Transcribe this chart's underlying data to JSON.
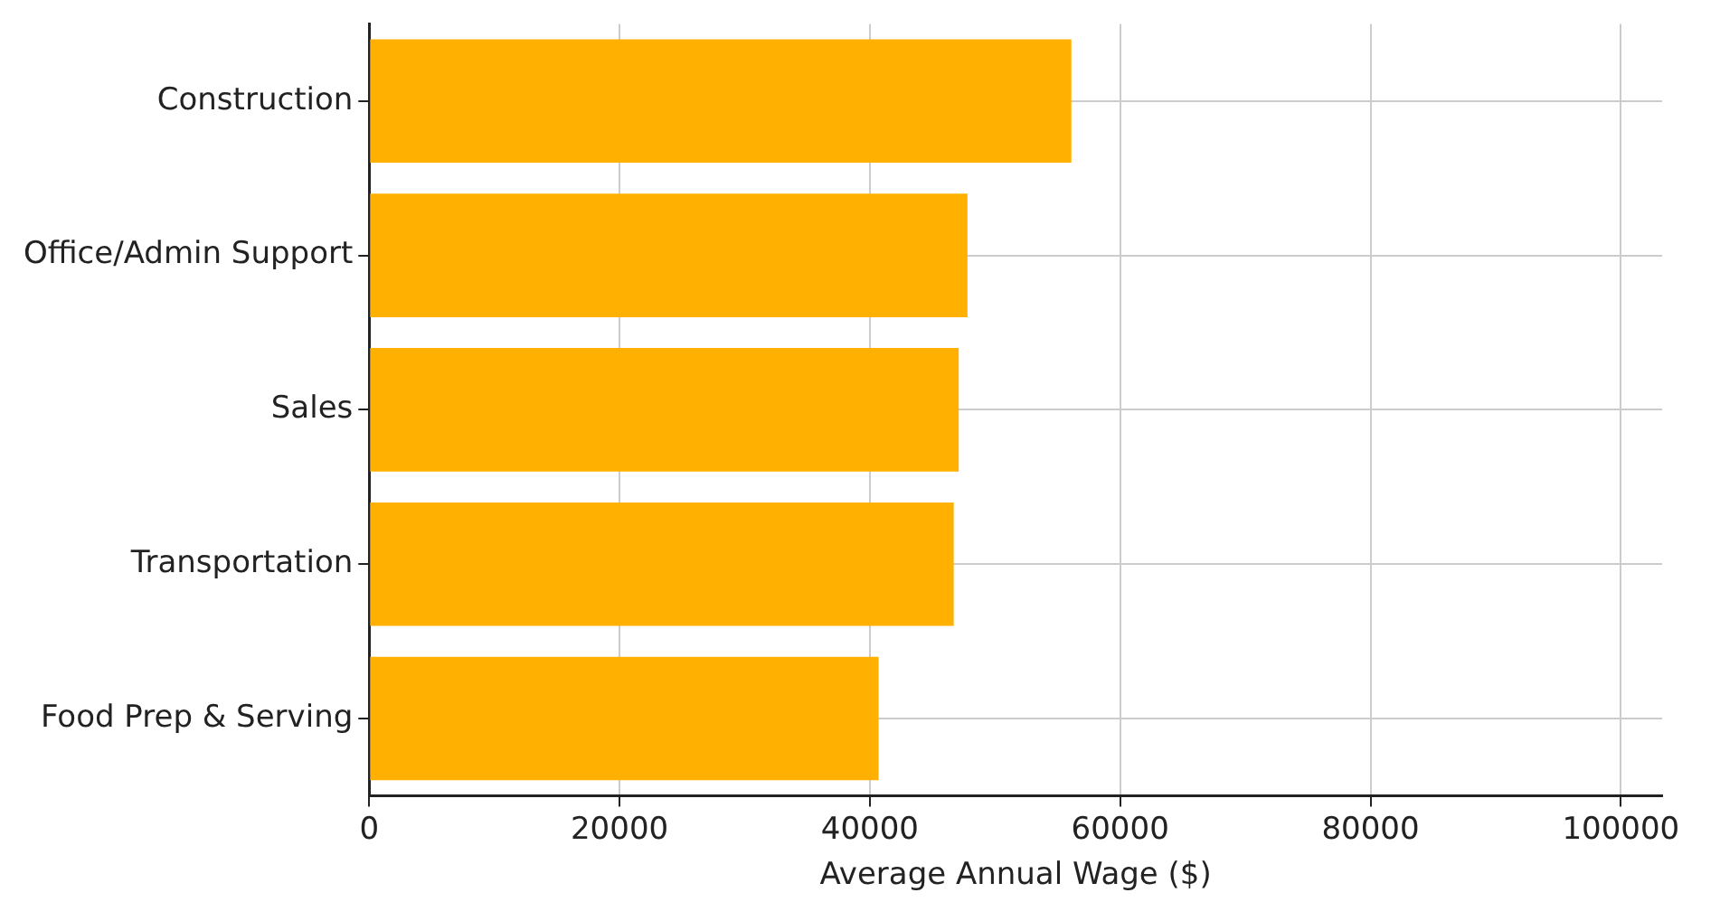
{
  "chart_data": {
    "type": "bar",
    "orientation": "horizontal",
    "xlabel": "Average Annual Wage ($)",
    "categories": [
      "Construction",
      "Office/Admin Support",
      "Sales",
      "Transportation",
      "Food Prep & Serving"
    ],
    "values": [
      56100,
      47800,
      47100,
      46700,
      40700
    ],
    "color": "#ffb000",
    "xlim": [
      0,
      103300
    ],
    "xticks": [
      0,
      20000,
      40000,
      60000,
      80000,
      100000
    ],
    "grid": true
  }
}
